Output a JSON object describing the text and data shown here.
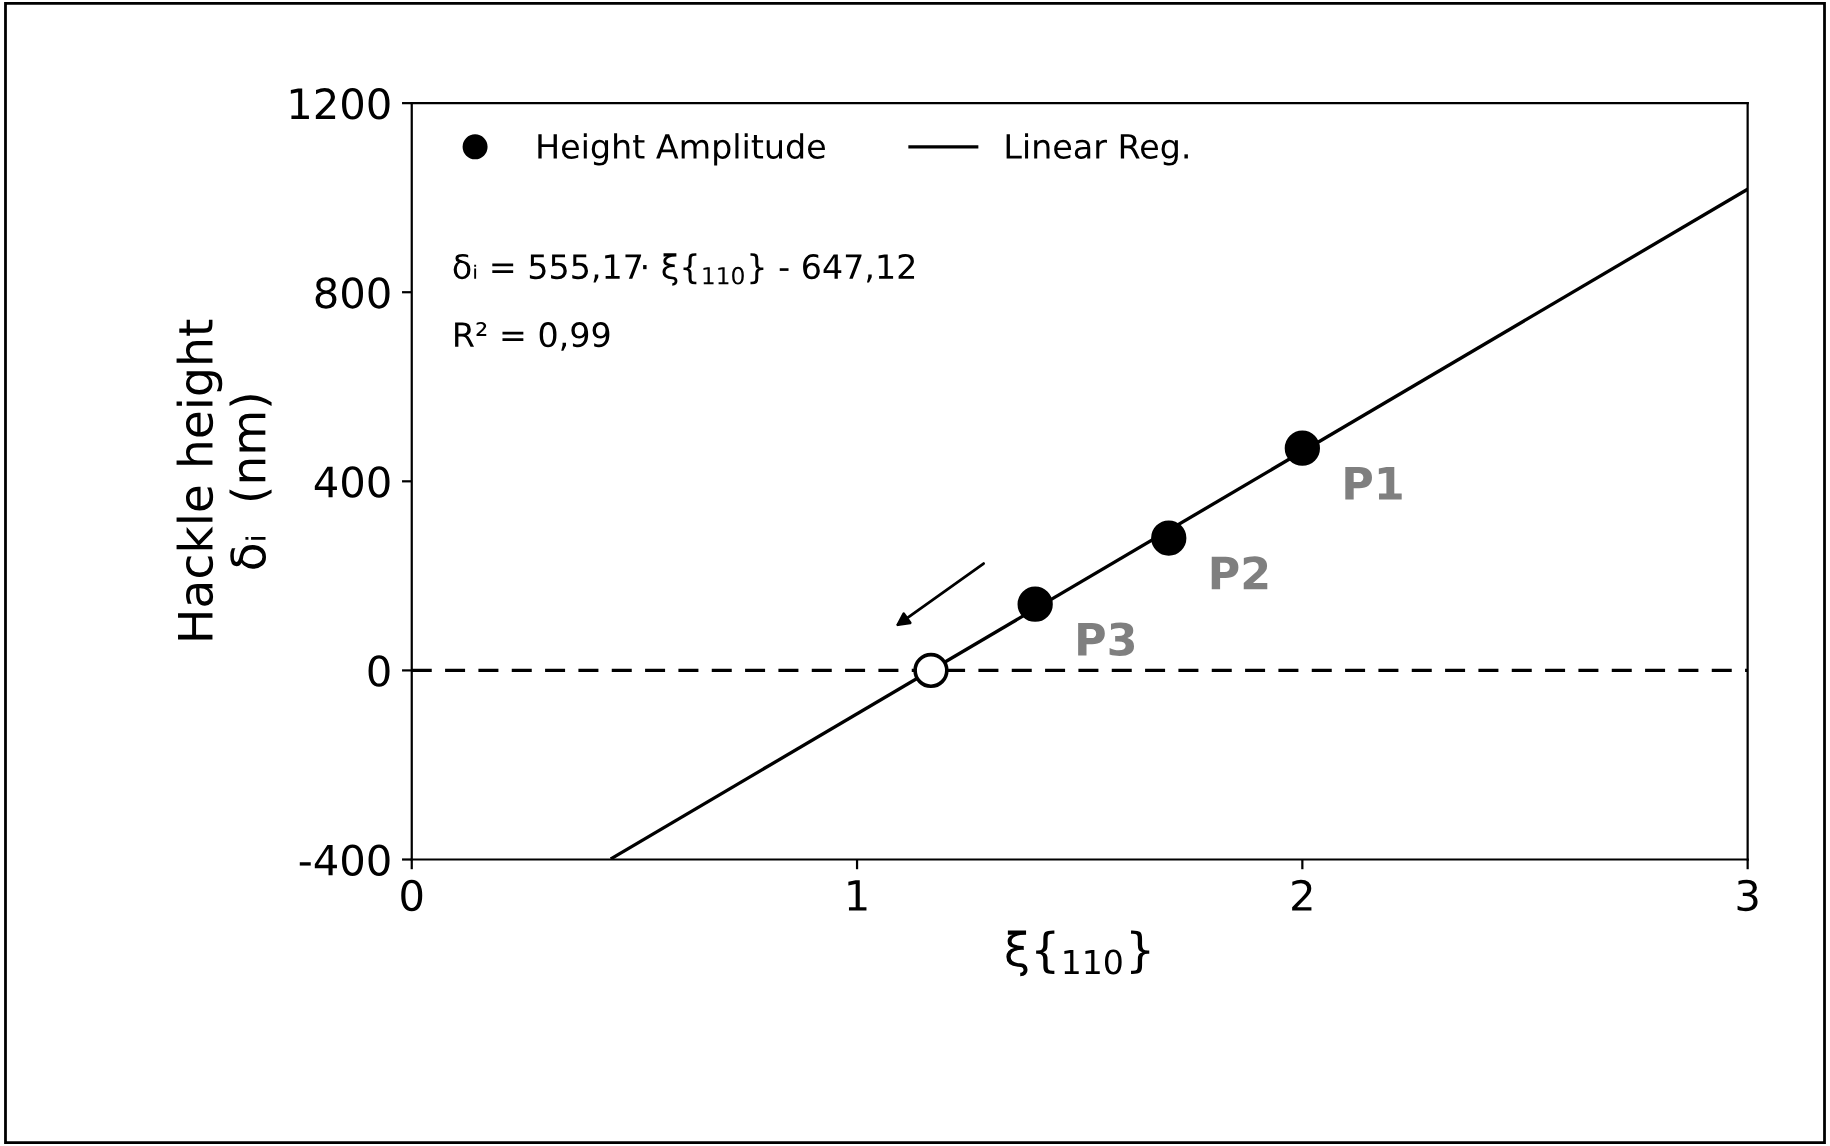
{
  "chart_data": {
    "type": "scatter",
    "xlabel": "ξ{$_{110}$}",
    "ylabel": "Hackle height\nδᵢ  (nm)",
    "xlim": [
      0,
      3
    ],
    "ylim": [
      -400,
      1200
    ],
    "xticks": [
      0,
      1,
      2,
      3
    ],
    "yticks": [
      -400,
      0,
      400,
      800,
      1200
    ],
    "grid": false,
    "legend": "top left",
    "series": [
      {
        "name": "Height Amplitude",
        "marker": "circle",
        "color": "#000000",
        "x": [
          1.4,
          1.7,
          2.0
        ],
        "values": [
          140,
          280,
          470
        ]
      },
      {
        "name": "Linear Reg.",
        "type": "line",
        "color": "#000000",
        "line_style": "solid",
        "x": [
          0.45,
          3.0
        ],
        "values": [
          -397,
          1018
        ]
      },
      {
        "marker": "circle",
        "color": "#ffffff",
        "x": [
          1.166
        ],
        "values": [
          0
        ]
      }
    ],
    "ref_lines": [
      {
        "axis": "y",
        "value": 0,
        "line_style": "dashed",
        "color": "#000000"
      }
    ],
    "annotations": [
      "δᵢ = 555,17· ξ{$_{110}$} - 647,12",
      "R² = 0,99",
      {
        "text": "P1",
        "x": 2.0,
        "y": 470
      },
      {
        "text": "P2",
        "x": 1.7,
        "y": 280
      },
      {
        "text": "P3",
        "x": 1.4,
        "y": 140
      }
    ]
  }
}
